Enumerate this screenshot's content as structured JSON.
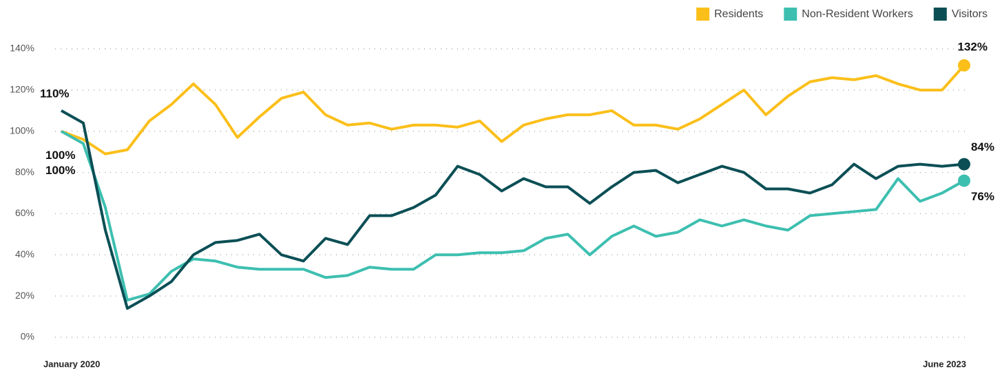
{
  "chart_data": {
    "type": "line",
    "categories": [
      "January 2020",
      null,
      null,
      null,
      null,
      null,
      null,
      null,
      null,
      null,
      null,
      null,
      null,
      null,
      null,
      null,
      null,
      null,
      null,
      null,
      null,
      null,
      null,
      null,
      null,
      null,
      null,
      null,
      null,
      null,
      null,
      null,
      null,
      null,
      null,
      null,
      null,
      null,
      null,
      null,
      null,
      "June 2023"
    ],
    "series": [
      {
        "name": "Residents",
        "color": "#fbbf1a",
        "values": [
          100,
          96,
          89,
          91,
          105,
          113,
          123,
          113,
          97,
          107,
          116,
          119,
          108,
          103,
          104,
          101,
          103,
          103,
          102,
          105,
          95,
          103,
          106,
          108,
          108,
          110,
          103,
          103,
          101,
          106,
          113,
          120,
          108,
          117,
          124,
          126,
          125,
          127,
          123,
          120,
          120,
          132
        ],
        "value_labels": [
          "100%",
          null,
          null,
          null,
          null,
          null,
          null,
          null,
          null,
          null,
          null,
          null,
          null,
          null,
          null,
          null,
          null,
          null,
          null,
          null,
          null,
          null,
          null,
          null,
          null,
          null,
          null,
          null,
          null,
          null,
          null,
          null,
          null,
          null,
          null,
          null,
          null,
          null,
          null,
          null,
          null,
          "132%"
        ]
      },
      {
        "name": "Non-Resident Workers",
        "color": "#3dbfb0",
        "values": [
          100,
          94,
          63,
          18,
          21,
          32,
          38,
          37,
          34,
          33,
          33,
          33,
          29,
          30,
          34,
          33,
          33,
          40,
          40,
          41,
          41,
          42,
          48,
          50,
          40,
          49,
          54,
          49,
          51,
          57,
          54,
          57,
          54,
          52,
          59,
          60,
          61,
          62,
          77,
          66,
          70,
          76
        ],
        "value_labels": [
          "100%",
          null,
          null,
          null,
          null,
          null,
          null,
          null,
          null,
          null,
          null,
          null,
          null,
          null,
          null,
          null,
          null,
          null,
          null,
          null,
          null,
          null,
          null,
          null,
          null,
          null,
          null,
          null,
          null,
          null,
          null,
          null,
          null,
          null,
          null,
          null,
          null,
          null,
          null,
          null,
          null,
          "76%"
        ]
      },
      {
        "name": "Visitors",
        "color": "#0b4f55",
        "values": [
          110,
          104,
          52,
          14,
          20,
          27,
          40,
          46,
          47,
          50,
          40,
          37,
          48,
          45,
          59,
          59,
          63,
          69,
          83,
          79,
          71,
          77,
          73,
          73,
          65,
          73,
          80,
          81,
          75,
          79,
          83,
          80,
          72,
          72,
          70,
          74,
          84,
          77,
          83,
          84,
          83,
          84
        ],
        "value_labels": [
          "110%",
          null,
          null,
          null,
          null,
          null,
          null,
          null,
          null,
          null,
          null,
          null,
          null,
          null,
          null,
          null,
          null,
          null,
          null,
          null,
          null,
          null,
          null,
          null,
          null,
          null,
          null,
          null,
          null,
          null,
          null,
          null,
          null,
          null,
          null,
          null,
          null,
          null,
          null,
          null,
          null,
          "84%"
        ]
      }
    ],
    "ylim": [
      0,
      140
    ],
    "yticks": [
      {
        "value": 0,
        "label": "0%"
      },
      {
        "value": 20,
        "label": "20%"
      },
      {
        "value": 40,
        "label": "40%"
      },
      {
        "value": 60,
        "label": "60%"
      },
      {
        "value": 80,
        "label": "80%"
      },
      {
        "value": 100,
        "label": "100%"
      },
      {
        "value": 120,
        "label": "120%"
      },
      {
        "value": 140,
        "label": "140%"
      }
    ],
    "grid": true,
    "legend": "top-right"
  }
}
